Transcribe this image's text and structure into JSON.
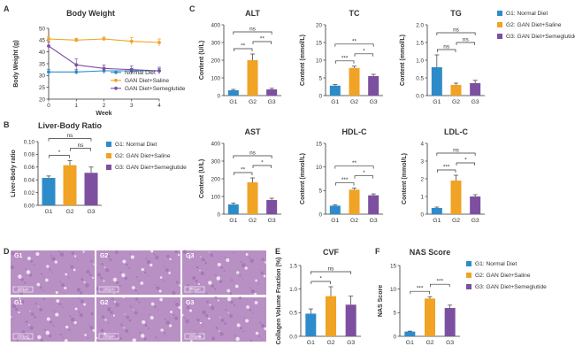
{
  "colors": {
    "g1": "#2E8BC9",
    "g2": "#F0A324",
    "g3": "#7D4FA0",
    "axis": "#333333",
    "tissue": "#B890C4"
  },
  "panel_letters": [
    "A",
    "B",
    "C",
    "D",
    "E",
    "F"
  ],
  "scale_bar_label": "200μm",
  "chart_data": [
    {
      "id": "body_weight",
      "type": "line",
      "title": "Body Weight",
      "xlabel": "Week",
      "ylabel": "Body Weight (g)",
      "x": [
        0,
        1,
        2,
        3,
        4
      ],
      "xlim": [
        0,
        4
      ],
      "ylim": [
        20,
        50
      ],
      "yticks": [
        "20",
        "25",
        "30",
        "35",
        "40",
        "45",
        "50"
      ],
      "xticks": [
        "0",
        "1",
        "2",
        "3",
        "4"
      ],
      "series": [
        {
          "name": "Normal Diet",
          "values": [
            31.5,
            31.5,
            32,
            32,
            32
          ],
          "errors": [
            1,
            1,
            1.2,
            1,
            1
          ],
          "color": "g1"
        },
        {
          "name": "GAN Diet+Saline",
          "values": [
            45.5,
            45,
            45.5,
            44.5,
            44
          ],
          "errors": [
            1,
            0.8,
            0.8,
            1.5,
            1.5
          ],
          "color": "g2"
        },
        {
          "name": "GAN Diet+Semeglutide",
          "values": [
            42.5,
            34.5,
            33,
            32.5,
            32
          ],
          "errors": [
            1.8,
            2.5,
            1.5,
            1.5,
            1.5
          ],
          "color": "g3"
        }
      ],
      "legend": "bottom-right"
    },
    {
      "id": "liver_body_ratio",
      "type": "bar",
      "title": "Liver-Body Ratio",
      "xlabel": "",
      "ylabel": "Liver-Body ratio",
      "categories": [
        "G1",
        "G2",
        "G3"
      ],
      "values": [
        0.043,
        0.063,
        0.051
      ],
      "errors": [
        0.003,
        0.007,
        0.009
      ],
      "ylim": [
        0,
        0.1
      ],
      "yticks": [
        "0.00",
        "0.02",
        "0.04",
        "0.06",
        "0.08",
        "0.10"
      ],
      "legend_entries": [
        "G1: Normal Diet",
        "G2: GAN Diet+Saline",
        "G3: GAN Diet+Semeglutide"
      ],
      "significance": [
        {
          "from": 0,
          "to": 1,
          "label": "*"
        },
        {
          "from": 1,
          "to": 2,
          "label": "ns"
        },
        {
          "from": 0,
          "to": 2,
          "label": "ns"
        }
      ]
    },
    {
      "id": "alt",
      "type": "bar",
      "title": "ALT",
      "xlabel": "",
      "ylabel": "Content (U/L)",
      "categories": [
        "G1",
        "G2",
        "G3"
      ],
      "values": [
        30,
        200,
        35
      ],
      "errors": [
        5,
        35,
        6
      ],
      "ylim": [
        0,
        400
      ],
      "yticks": [
        "0",
        "100",
        "200",
        "300",
        "400"
      ],
      "significance": [
        {
          "from": 0,
          "to": 1,
          "label": "**"
        },
        {
          "from": 1,
          "to": 2,
          "label": "**"
        },
        {
          "from": 0,
          "to": 2,
          "label": "ns"
        }
      ]
    },
    {
      "id": "tc",
      "type": "bar",
      "title": "TC",
      "xlabel": "",
      "ylabel": "Content (mmol/L)",
      "categories": [
        "G1",
        "G2",
        "G3"
      ],
      "values": [
        2.8,
        7.8,
        5.5
      ],
      "errors": [
        0.3,
        0.5,
        0.5
      ],
      "ylim": [
        0,
        20
      ],
      "yticks": [
        "0",
        "5",
        "10",
        "15",
        "20"
      ],
      "significance": [
        {
          "from": 0,
          "to": 1,
          "label": "***"
        },
        {
          "from": 1,
          "to": 2,
          "label": "*"
        },
        {
          "from": 0,
          "to": 2,
          "label": "**"
        }
      ]
    },
    {
      "id": "tg",
      "type": "bar",
      "title": "TG",
      "xlabel": "",
      "ylabel": "Content (mmol/L)",
      "categories": [
        "G1",
        "G2",
        "G3"
      ],
      "values": [
        0.8,
        0.3,
        0.35
      ],
      "errors": [
        0.35,
        0.05,
        0.08
      ],
      "ylim": [
        0,
        2.0
      ],
      "yticks": [
        "0.0",
        "0.5",
        "1.0",
        "1.5",
        "2.0"
      ],
      "significance": [
        {
          "from": 0,
          "to": 1,
          "label": "ns"
        },
        {
          "from": 1,
          "to": 2,
          "label": "ns"
        },
        {
          "from": 0,
          "to": 2,
          "label": "ns"
        }
      ]
    },
    {
      "id": "ast",
      "type": "bar",
      "title": "AST",
      "xlabel": "",
      "ylabel": "Content (U/L)",
      "categories": [
        "G1",
        "G2",
        "G3"
      ],
      "values": [
        55,
        180,
        80
      ],
      "errors": [
        8,
        25,
        10
      ],
      "ylim": [
        0,
        400
      ],
      "yticks": [
        "0",
        "100",
        "200",
        "300",
        "400"
      ],
      "significance": [
        {
          "from": 0,
          "to": 1,
          "label": "**"
        },
        {
          "from": 1,
          "to": 2,
          "label": "*"
        },
        {
          "from": 0,
          "to": 2,
          "label": "ns"
        }
      ]
    },
    {
      "id": "hdl_c",
      "type": "bar",
      "title": "HDL-C",
      "xlabel": "",
      "ylabel": "Content (mmol/L)",
      "categories": [
        "G1",
        "G2",
        "G3"
      ],
      "values": [
        1.8,
        5.2,
        4.0
      ],
      "errors": [
        0.2,
        0.3,
        0.3
      ],
      "ylim": [
        0,
        15
      ],
      "yticks": [
        "0",
        "5",
        "10",
        "15"
      ],
      "significance": [
        {
          "from": 0,
          "to": 1,
          "label": "***"
        },
        {
          "from": 1,
          "to": 2,
          "label": "*"
        },
        {
          "from": 0,
          "to": 2,
          "label": "**"
        }
      ]
    },
    {
      "id": "ldl_c",
      "type": "bar",
      "title": "LDL-C",
      "xlabel": "",
      "ylabel": "Content (mmol/L)",
      "categories": [
        "G1",
        "G2",
        "G3"
      ],
      "values": [
        0.35,
        1.9,
        1.0
      ],
      "errors": [
        0.05,
        0.3,
        0.1
      ],
      "ylim": [
        0,
        4
      ],
      "yticks": [
        "0",
        "1",
        "2",
        "3",
        "4"
      ],
      "significance": [
        {
          "from": 0,
          "to": 1,
          "label": "***"
        },
        {
          "from": 1,
          "to": 2,
          "label": "*"
        },
        {
          "from": 0,
          "to": 2,
          "label": "ns"
        }
      ],
      "legend_entries": [
        "G1: Normal Diet",
        "G2: GAN Diet+Saline",
        "G3: GAN Diet+Semeglutide"
      ]
    },
    {
      "id": "cvf",
      "type": "bar",
      "title": "CVF",
      "xlabel": "",
      "ylabel": "Collagen Volume Fraction (%)",
      "categories": [
        "G1",
        "G2",
        "G3"
      ],
      "values": [
        0.48,
        0.85,
        0.67
      ],
      "errors": [
        0.1,
        0.2,
        0.18
      ],
      "ylim": [
        0,
        1.5
      ],
      "yticks": [
        "0.0",
        "0.5",
        "1.0",
        "1.5"
      ],
      "significance": [
        {
          "from": 0,
          "to": 1,
          "label": "*"
        },
        {
          "from": 0,
          "to": 2,
          "label": "ns"
        }
      ]
    },
    {
      "id": "nas_score",
      "type": "bar",
      "title": "NAS Score",
      "xlabel": "",
      "ylabel": "NAS Score",
      "categories": [
        "G1",
        "G2",
        "G3"
      ],
      "values": [
        1.0,
        8.0,
        6.0
      ],
      "errors": [
        0.1,
        0.4,
        0.6
      ],
      "ylim": [
        0,
        15
      ],
      "yticks": [
        "0",
        "5",
        "10",
        "15"
      ],
      "significance": [
        {
          "from": 0,
          "to": 1,
          "label": "***"
        },
        {
          "from": 1,
          "to": 2,
          "label": "***"
        }
      ],
      "legend_entries": [
        "G1: Normal Diet",
        "G2: GAN Diet+Saline",
        "G3: GAN Diet+Semeglutide"
      ]
    }
  ],
  "histology": {
    "rows": [
      [
        "G1",
        "G2",
        "G3"
      ],
      [
        "G1",
        "G2",
        "G3"
      ]
    ]
  }
}
